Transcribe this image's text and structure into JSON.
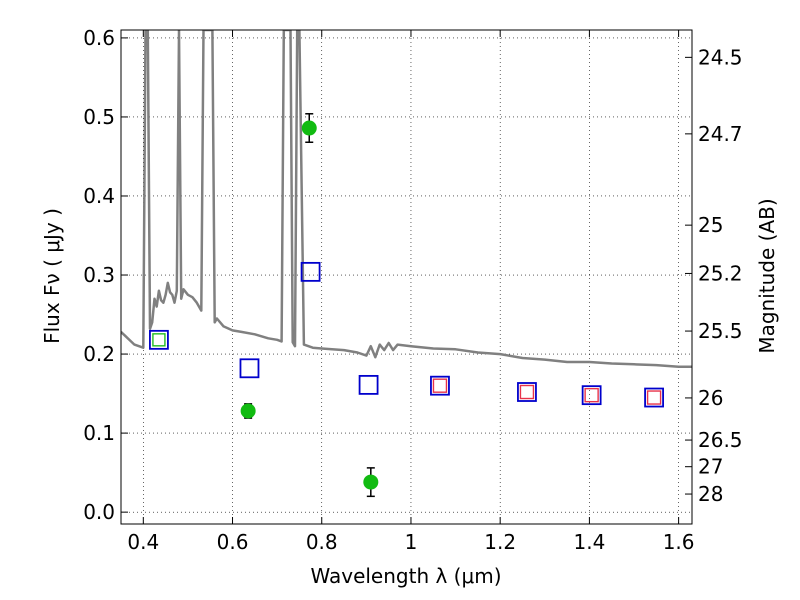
{
  "chart_data": {
    "type": "scatter",
    "title": "",
    "xlabel": "Wavelength  λ (μm)",
    "ylabel": "Flux  Fν  ( μJy )",
    "y2label": "Magnitude (AB)",
    "xlim": [
      0.35,
      1.63
    ],
    "ylim": [
      -0.015,
      0.61
    ],
    "grid": true,
    "x_ticks": [
      0.4,
      0.6,
      0.8,
      1.0,
      1.2,
      1.4,
      1.6
    ],
    "x_tick_labels": [
      "0.4",
      "0.6",
      "0.8",
      "1",
      "1.2",
      "1.4",
      "1.6"
    ],
    "y_ticks": [
      0.0,
      0.1,
      0.2,
      0.3,
      0.4,
      0.5,
      0.6
    ],
    "y_tick_labels": [
      "0.0",
      "0.1",
      "0.2",
      "0.3",
      "0.4",
      "0.5",
      "0.6"
    ],
    "y2_ticks": [
      {
        "label": "24.5",
        "flux": 0.5754
      },
      {
        "label": "24.7",
        "flux": 0.4786
      },
      {
        "label": "25",
        "flux": 0.3631
      },
      {
        "label": "25.2",
        "flux": 0.302
      },
      {
        "label": "25.5",
        "flux": 0.2291
      },
      {
        "label": "26",
        "flux": 0.1445
      },
      {
        "label": "26.5",
        "flux": 0.0912
      },
      {
        "label": "27",
        "flux": 0.0575
      },
      {
        "label": "28",
        "flux": 0.0229
      }
    ],
    "series": [
      {
        "style": "line",
        "color": "#808080",
        "x": [
          0.35,
          0.38,
          0.4,
          0.405,
          0.41,
          0.415,
          0.42,
          0.425,
          0.43,
          0.435,
          0.44,
          0.445,
          0.45,
          0.455,
          0.46,
          0.465,
          0.47,
          0.475,
          0.48,
          0.485,
          0.49,
          0.5,
          0.51,
          0.52,
          0.53,
          0.535,
          0.54,
          0.545,
          0.55,
          0.555,
          0.56,
          0.565,
          0.58,
          0.6,
          0.62,
          0.65,
          0.68,
          0.7,
          0.71,
          0.715,
          0.72,
          0.725,
          0.73,
          0.735,
          0.74,
          0.745,
          0.75,
          0.76,
          0.78,
          0.8,
          0.85,
          0.88,
          0.9,
          0.91,
          0.92,
          0.93,
          0.94,
          0.95,
          0.96,
          0.97,
          1.0,
          1.05,
          1.1,
          1.15,
          1.2,
          1.25,
          1.3,
          1.35,
          1.4,
          1.45,
          1.5,
          1.55,
          1.6,
          1.63
        ],
        "y": [
          0.228,
          0.212,
          0.208,
          0.61,
          0.61,
          0.232,
          0.24,
          0.27,
          0.26,
          0.28,
          0.268,
          0.265,
          0.275,
          0.29,
          0.278,
          0.275,
          0.265,
          0.28,
          0.61,
          0.27,
          0.282,
          0.275,
          0.272,
          0.265,
          0.255,
          0.61,
          0.61,
          0.61,
          0.61,
          0.61,
          0.24,
          0.245,
          0.235,
          0.23,
          0.228,
          0.225,
          0.22,
          0.218,
          0.216,
          0.61,
          0.61,
          0.61,
          0.61,
          0.215,
          0.21,
          0.61,
          0.61,
          0.212,
          0.208,
          0.207,
          0.205,
          0.202,
          0.198,
          0.21,
          0.196,
          0.212,
          0.205,
          0.214,
          0.205,
          0.212,
          0.21,
          0.207,
          0.206,
          0.202,
          0.2,
          0.195,
          0.193,
          0.19,
          0.19,
          0.188,
          0.187,
          0.186,
          0.184,
          0.184
        ]
      },
      {
        "style": "square-open",
        "color": "#0000cc",
        "x": [
          0.435,
          0.638,
          0.775,
          0.905,
          1.065,
          1.26,
          1.405,
          1.545
        ],
        "y": [
          0.218,
          0.182,
          0.304,
          0.161,
          0.16,
          0.152,
          0.148,
          0.145
        ]
      },
      {
        "style": "square-open",
        "color": "#e8334a",
        "x": [
          1.065,
          1.26,
          1.405,
          1.545
        ],
        "y": [
          0.16,
          0.152,
          0.148,
          0.145
        ]
      },
      {
        "style": "square-open",
        "color": "#22bb22",
        "x": [
          0.435
        ],
        "y": [
          0.218
        ]
      },
      {
        "style": "circle-errorbar",
        "color": "#11bb11",
        "x": [
          0.635,
          0.772,
          0.91
        ],
        "y": [
          0.128,
          0.486,
          0.038
        ],
        "err": [
          0.009,
          0.018,
          0.018
        ]
      }
    ]
  }
}
